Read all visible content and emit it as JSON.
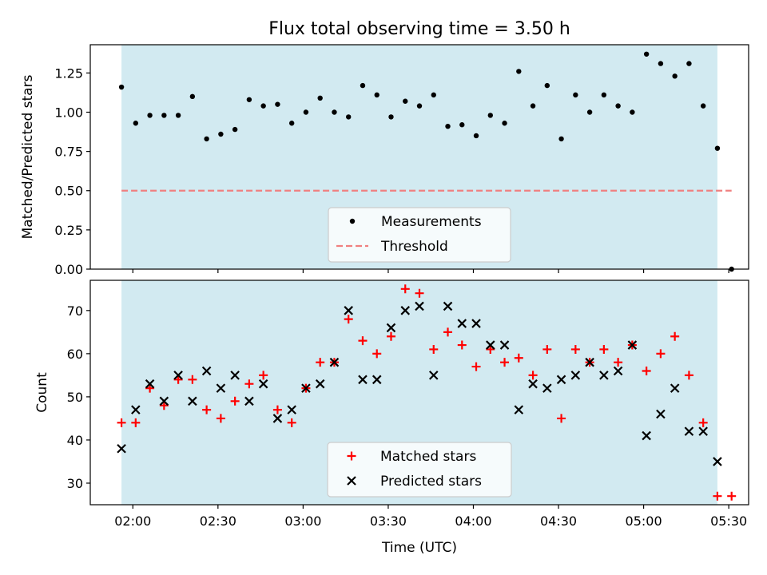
{
  "chart_data": [
    {
      "type": "scatter",
      "title": "Flux total observing time = 3.50 h",
      "ylabel": "Matched/Predicted stars",
      "xlim": [
        "01:45",
        "05:37"
      ],
      "ylim": [
        0,
        1.43
      ],
      "yticks": [
        "0.00",
        "0.25",
        "0.50",
        "0.75",
        "1.00",
        "1.25"
      ],
      "shaded_span": [
        "01:56",
        "05:26"
      ],
      "threshold": 0.5,
      "legend_position": "lower center",
      "series": [
        {
          "name": "Measurements",
          "marker": "dot",
          "color": "#000000",
          "points": [
            [
              "01:56",
              1.16
            ],
            [
              "02:01",
              0.93
            ],
            [
              "02:06",
              0.98
            ],
            [
              "02:11",
              0.98
            ],
            [
              "02:16",
              0.98
            ],
            [
              "02:21",
              1.1
            ],
            [
              "02:26",
              0.83
            ],
            [
              "02:31",
              0.86
            ],
            [
              "02:36",
              0.89
            ],
            [
              "02:41",
              1.08
            ],
            [
              "02:46",
              1.04
            ],
            [
              "02:51",
              1.05
            ],
            [
              "02:56",
              0.93
            ],
            [
              "03:01",
              1.0
            ],
            [
              "03:06",
              1.09
            ],
            [
              "03:11",
              1.0
            ],
            [
              "03:16",
              0.97
            ],
            [
              "03:21",
              1.17
            ],
            [
              "03:26",
              1.11
            ],
            [
              "03:31",
              0.97
            ],
            [
              "03:36",
              1.07
            ],
            [
              "03:41",
              1.04
            ],
            [
              "03:46",
              1.11
            ],
            [
              "03:51",
              0.91
            ],
            [
              "03:56",
              0.92
            ],
            [
              "04:01",
              0.85
            ],
            [
              "04:06",
              0.98
            ],
            [
              "04:11",
              0.93
            ],
            [
              "04:16",
              1.26
            ],
            [
              "04:21",
              1.04
            ],
            [
              "04:26",
              1.17
            ],
            [
              "04:31",
              0.83
            ],
            [
              "04:36",
              1.11
            ],
            [
              "04:41",
              1.0
            ],
            [
              "04:46",
              1.11
            ],
            [
              "04:51",
              1.04
            ],
            [
              "04:56",
              1.0
            ],
            [
              "05:01",
              1.37
            ],
            [
              "05:06",
              1.31
            ],
            [
              "05:11",
              1.23
            ],
            [
              "05:16",
              1.31
            ],
            [
              "05:21",
              1.04
            ],
            [
              "05:26",
              0.77
            ],
            [
              "05:31",
              0.0
            ]
          ]
        },
        {
          "name": "Threshold",
          "style": "dashed-line",
          "color": "#f08080",
          "points": [
            [
              "01:56",
              0.5
            ],
            [
              "05:31",
              0.5
            ]
          ]
        }
      ]
    },
    {
      "type": "scatter",
      "xlabel": "Time (UTC)",
      "ylabel": "Count",
      "xlim": [
        "01:45",
        "05:37"
      ],
      "ylim": [
        25,
        77
      ],
      "yticks": [
        "30",
        "40",
        "50",
        "60",
        "70"
      ],
      "xticks": [
        "02:00",
        "02:30",
        "03:00",
        "03:30",
        "04:00",
        "04:30",
        "05:00",
        "05:30"
      ],
      "shaded_span": [
        "01:56",
        "05:26"
      ],
      "legend_position": "lower center",
      "series": [
        {
          "name": "Matched stars",
          "marker": "plus",
          "color": "#ff0000",
          "points": [
            [
              "01:56",
              44
            ],
            [
              "02:01",
              44
            ],
            [
              "02:06",
              52
            ],
            [
              "02:11",
              48
            ],
            [
              "02:16",
              54
            ],
            [
              "02:21",
              54
            ],
            [
              "02:26",
              47
            ],
            [
              "02:31",
              45
            ],
            [
              "02:36",
              49
            ],
            [
              "02:41",
              53
            ],
            [
              "02:46",
              55
            ],
            [
              "02:51",
              47
            ],
            [
              "02:56",
              44
            ],
            [
              "03:01",
              52
            ],
            [
              "03:06",
              58
            ],
            [
              "03:11",
              58
            ],
            [
              "03:16",
              68
            ],
            [
              "03:21",
              63
            ],
            [
              "03:26",
              60
            ],
            [
              "03:31",
              64
            ],
            [
              "03:36",
              75
            ],
            [
              "03:41",
              74
            ],
            [
              "03:46",
              61
            ],
            [
              "03:51",
              65
            ],
            [
              "03:56",
              62
            ],
            [
              "04:01",
              57
            ],
            [
              "04:06",
              61
            ],
            [
              "04:11",
              58
            ],
            [
              "04:16",
              59
            ],
            [
              "04:21",
              55
            ],
            [
              "04:26",
              61
            ],
            [
              "04:31",
              45
            ],
            [
              "04:36",
              61
            ],
            [
              "04:41",
              58
            ],
            [
              "04:46",
              61
            ],
            [
              "04:51",
              58
            ],
            [
              "04:56",
              62
            ],
            [
              "05:01",
              56
            ],
            [
              "05:06",
              60
            ],
            [
              "05:11",
              64
            ],
            [
              "05:16",
              55
            ],
            [
              "05:21",
              44
            ],
            [
              "05:26",
              27
            ],
            [
              "05:31",
              27
            ]
          ]
        },
        {
          "name": "Predicted stars",
          "marker": "x",
          "color": "#000000",
          "points": [
            [
              "01:56",
              38
            ],
            [
              "02:01",
              47
            ],
            [
              "02:06",
              53
            ],
            [
              "02:11",
              49
            ],
            [
              "02:16",
              55
            ],
            [
              "02:21",
              49
            ],
            [
              "02:26",
              56
            ],
            [
              "02:31",
              52
            ],
            [
              "02:36",
              55
            ],
            [
              "02:41",
              49
            ],
            [
              "02:46",
              53
            ],
            [
              "02:51",
              45
            ],
            [
              "02:56",
              47
            ],
            [
              "03:01",
              52
            ],
            [
              "03:06",
              53
            ],
            [
              "03:11",
              58
            ],
            [
              "03:16",
              70
            ],
            [
              "03:21",
              54
            ],
            [
              "03:26",
              54
            ],
            [
              "03:31",
              66
            ],
            [
              "03:36",
              70
            ],
            [
              "03:41",
              71
            ],
            [
              "03:46",
              55
            ],
            [
              "03:51",
              71
            ],
            [
              "03:56",
              67
            ],
            [
              "04:01",
              67
            ],
            [
              "04:06",
              62
            ],
            [
              "04:11",
              62
            ],
            [
              "04:16",
              47
            ],
            [
              "04:21",
              53
            ],
            [
              "04:26",
              52
            ],
            [
              "04:31",
              54
            ],
            [
              "04:36",
              55
            ],
            [
              "04:41",
              58
            ],
            [
              "04:46",
              55
            ],
            [
              "04:51",
              56
            ],
            [
              "04:56",
              62
            ],
            [
              "05:01",
              41
            ],
            [
              "05:06",
              46
            ],
            [
              "05:11",
              52
            ],
            [
              "05:16",
              42
            ],
            [
              "05:21",
              42
            ],
            [
              "05:26",
              35
            ]
          ]
        }
      ]
    }
  ],
  "colors": {
    "shade": "#add8e6",
    "threshold": "#f08080",
    "matched": "#ff0000",
    "predicted": "#000000"
  }
}
